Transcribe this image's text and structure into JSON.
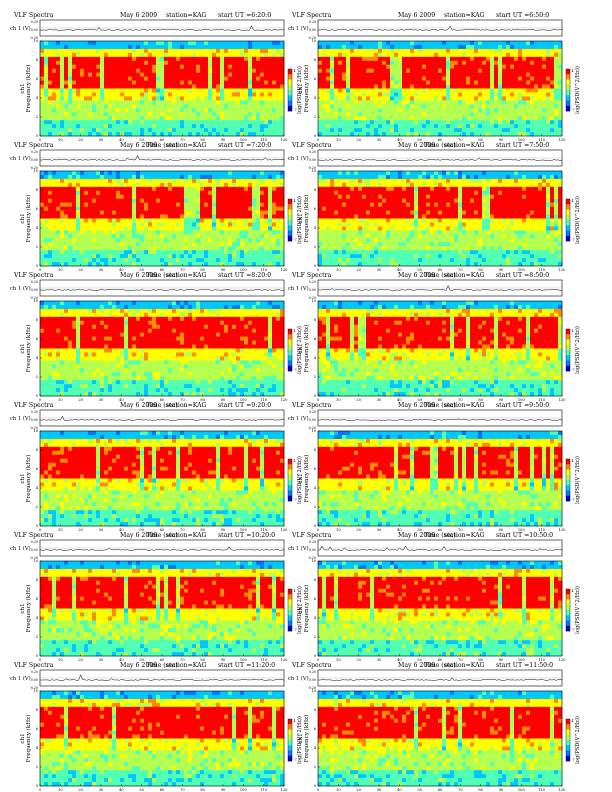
{
  "page": {
    "background": "#ffffff"
  },
  "panel_text": {
    "product": "VLF Spectra",
    "date": "May 6 2009",
    "station": "station=KAG",
    "start_prefix": "start  UT ="
  },
  "axis_text": {
    "amp_label": "ch 1 (V)",
    "freq_label": "ch1\nFrequency (kHz)",
    "time_label": "Time (sec)",
    "cbar_label": "log(PSD(V^2/Hz))",
    "amp_ticks": [
      "0.20",
      "0.00",
      "-0.20"
    ],
    "freq_ticks": [
      "0",
      "2",
      "4",
      "6",
      "8",
      "10"
    ],
    "time_ticks": [
      "0",
      "10",
      "20",
      "30",
      "40",
      "50",
      "60",
      "70",
      "80",
      "90",
      "100",
      "110",
      "120"
    ],
    "cbar_ticks": [
      "4",
      "-7"
    ]
  },
  "colormap": [
    "#0000c8",
    "#0078ff",
    "#00c8ff",
    "#50ffb4",
    "#b4ff50",
    "#ffff00",
    "#ff8c00",
    "#ff0000"
  ],
  "chart_data": [
    {
      "type": "heatmap",
      "start_ut": "6:20:0",
      "xlim": [
        0,
        120
      ],
      "ylim": [
        0,
        10
      ]
    },
    {
      "type": "heatmap",
      "start_ut": "6:50:0",
      "xlim": [
        0,
        120
      ],
      "ylim": [
        0,
        10
      ]
    },
    {
      "type": "heatmap",
      "start_ut": "7:20:0",
      "xlim": [
        0,
        120
      ],
      "ylim": [
        0,
        10
      ]
    },
    {
      "type": "heatmap",
      "start_ut": "7:50:0",
      "xlim": [
        0,
        120
      ],
      "ylim": [
        0,
        10
      ]
    },
    {
      "type": "heatmap",
      "start_ut": "8:20:0",
      "xlim": [
        0,
        120
      ],
      "ylim": [
        0,
        10
      ]
    },
    {
      "type": "heatmap",
      "start_ut": "8:50:0",
      "xlim": [
        0,
        120
      ],
      "ylim": [
        0,
        10
      ]
    },
    {
      "type": "heatmap",
      "start_ut": "9:20:0",
      "xlim": [
        0,
        120
      ],
      "ylim": [
        0,
        10
      ]
    },
    {
      "type": "heatmap",
      "start_ut": "9:50:0",
      "xlim": [
        0,
        120
      ],
      "ylim": [
        0,
        10
      ]
    },
    {
      "type": "heatmap",
      "start_ut": "10:20:0",
      "xlim": [
        0,
        120
      ],
      "ylim": [
        0,
        10
      ]
    },
    {
      "type": "heatmap",
      "start_ut": "10:50:0",
      "xlim": [
        0,
        120
      ],
      "ylim": [
        0,
        10
      ]
    },
    {
      "type": "heatmap",
      "start_ut": "11:20:0",
      "xlim": [
        0,
        120
      ],
      "ylim": [
        0,
        10
      ]
    },
    {
      "type": "heatmap",
      "start_ut": "11:50:0",
      "xlim": [
        0,
        120
      ],
      "ylim": [
        0,
        10
      ]
    }
  ]
}
